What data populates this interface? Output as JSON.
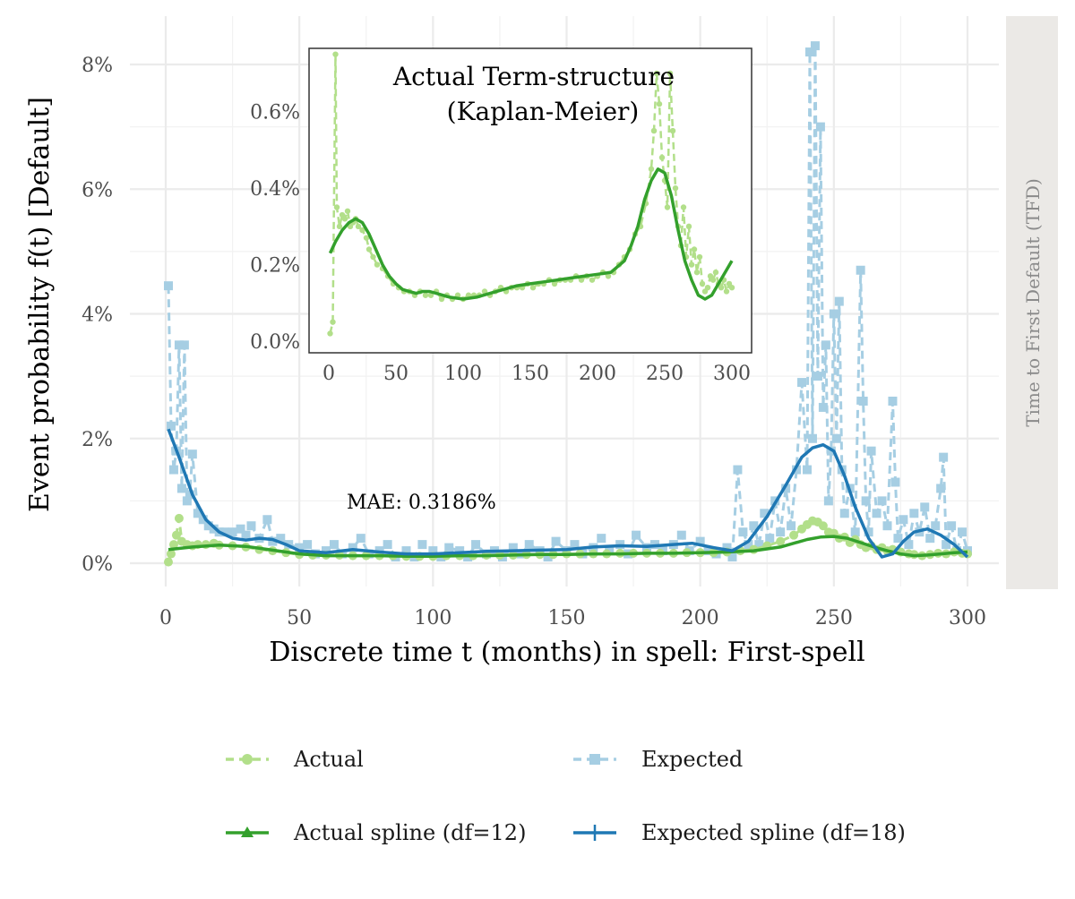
{
  "chart_data": {
    "type": "line",
    "xlabel": "Discrete time t (months) in spell: First-spell",
    "ylabel": "Event probability f(t) [Default]",
    "facet_label": "Time to First Default (TFD)",
    "annotation": "MAE: 0.3186%",
    "xlim": [
      0,
      300
    ],
    "ylim": [
      0,
      8
    ],
    "x_ticks": [
      "0",
      "50",
      "100",
      "150",
      "200",
      "250",
      "300"
    ],
    "y_ticks": [
      "0%",
      "2%",
      "4%",
      "6%",
      "8%"
    ],
    "grid": true,
    "legend_position": "bottom",
    "legend": [
      {
        "label": "Actual",
        "color": "#b2df8a",
        "style": "dashed-circle"
      },
      {
        "label": "Expected",
        "color": "#a6cee3",
        "style": "dashed-square"
      },
      {
        "label": "Actual spline (df=12)",
        "color": "#33a02c",
        "style": "solid-triangle"
      },
      {
        "label": "Expected spline (df=18)",
        "color": "#1f78b4",
        "style": "solid-plus"
      }
    ],
    "series": [
      {
        "name": "Actual",
        "color": "#b2df8a",
        "x": [
          1,
          2,
          3,
          4,
          5,
          6,
          8,
          10,
          12,
          15,
          18,
          20,
          25,
          30,
          35,
          40,
          45,
          50,
          55,
          60,
          65,
          70,
          75,
          80,
          85,
          90,
          95,
          100,
          105,
          110,
          115,
          120,
          125,
          130,
          135,
          140,
          145,
          150,
          155,
          160,
          165,
          170,
          175,
          180,
          185,
          190,
          195,
          200,
          205,
          210,
          215,
          220,
          225,
          230,
          235,
          238,
          240,
          242,
          244,
          246,
          248,
          250,
          252,
          254,
          256,
          258,
          260,
          262,
          264,
          266,
          268,
          270,
          272,
          275,
          278,
          280,
          283,
          286,
          289,
          292,
          295,
          298,
          300
        ],
        "y": [
          0.02,
          0.15,
          0.3,
          0.45,
          0.72,
          0.35,
          0.3,
          0.28,
          0.3,
          0.3,
          0.32,
          0.29,
          0.28,
          0.26,
          0.22,
          0.2,
          0.17,
          0.14,
          0.13,
          0.13,
          0.13,
          0.12,
          0.12,
          0.12,
          0.12,
          0.11,
          0.11,
          0.11,
          0.12,
          0.12,
          0.12,
          0.13,
          0.13,
          0.13,
          0.14,
          0.14,
          0.14,
          0.15,
          0.15,
          0.15,
          0.15,
          0.16,
          0.16,
          0.16,
          0.16,
          0.16,
          0.17,
          0.17,
          0.17,
          0.18,
          0.2,
          0.22,
          0.28,
          0.35,
          0.45,
          0.55,
          0.62,
          0.68,
          0.66,
          0.6,
          0.5,
          0.48,
          0.4,
          0.42,
          0.33,
          0.38,
          0.3,
          0.25,
          0.28,
          0.22,
          0.25,
          0.2,
          0.22,
          0.18,
          0.15,
          0.14,
          0.12,
          0.14,
          0.16,
          0.15,
          0.18,
          0.16,
          0.15
        ]
      },
      {
        "name": "Expected",
        "color": "#a6cee3",
        "x": [
          1,
          2,
          3,
          4,
          5,
          6,
          7,
          8,
          9,
          10,
          12,
          14,
          16,
          18,
          20,
          22,
          25,
          28,
          30,
          32,
          35,
          38,
          40,
          43,
          46,
          50,
          53,
          56,
          60,
          63,
          66,
          70,
          73,
          76,
          80,
          83,
          86,
          90,
          93,
          96,
          100,
          103,
          106,
          110,
          113,
          116,
          120,
          123,
          126,
          130,
          133,
          136,
          140,
          143,
          146,
          150,
          153,
          156,
          160,
          163,
          166,
          170,
          173,
          176,
          180,
          183,
          186,
          190,
          193,
          196,
          200,
          203,
          206,
          210,
          212,
          214,
          216,
          218,
          220,
          222,
          224,
          226,
          228,
          230,
          232,
          234,
          236,
          238,
          240,
          241,
          242,
          243,
          244,
          245,
          246,
          247,
          248,
          249,
          250,
          251,
          252,
          253,
          254,
          256,
          258,
          260,
          261,
          262,
          263,
          264,
          266,
          268,
          270,
          272,
          273,
          274,
          276,
          278,
          280,
          282,
          284,
          286,
          288,
          290,
          291,
          292,
          294,
          296,
          298,
          300
        ],
        "y": [
          4.45,
          2.2,
          1.5,
          1.8,
          3.5,
          1.2,
          3.5,
          1.0,
          1.1,
          1.75,
          0.8,
          0.7,
          0.6,
          0.55,
          0.5,
          0.5,
          0.5,
          0.55,
          0.45,
          0.6,
          0.4,
          0.7,
          0.35,
          0.4,
          0.3,
          0.25,
          0.3,
          0.15,
          0.2,
          0.3,
          0.15,
          0.25,
          0.4,
          0.15,
          0.2,
          0.3,
          0.1,
          0.2,
          0.1,
          0.3,
          0.2,
          0.1,
          0.25,
          0.2,
          0.1,
          0.3,
          0.15,
          0.2,
          0.1,
          0.25,
          0.15,
          0.3,
          0.2,
          0.1,
          0.35,
          0.2,
          0.3,
          0.15,
          0.25,
          0.4,
          0.2,
          0.3,
          0.15,
          0.45,
          0.25,
          0.3,
          0.2,
          0.3,
          0.45,
          0.2,
          0.35,
          0.2,
          0.15,
          0.25,
          0.1,
          1.5,
          0.5,
          0.3,
          0.6,
          0.3,
          0.8,
          0.4,
          1.0,
          0.5,
          1.2,
          0.6,
          1.5,
          2.9,
          1.5,
          8.2,
          2.0,
          8.3,
          3.0,
          7.0,
          2.5,
          3.5,
          1.0,
          1.8,
          4.0,
          2.0,
          4.2,
          1.5,
          0.8,
          1.2,
          0.5,
          4.7,
          2.6,
          1.0,
          0.5,
          1.8,
          0.8,
          1.0,
          0.6,
          2.6,
          1.3,
          0.4,
          0.7,
          0.3,
          0.8,
          0.5,
          0.9,
          0.4,
          0.6,
          1.2,
          1.7,
          0.3,
          0.6,
          0.2,
          0.5,
          0.2
        ]
      },
      {
        "name": "Actual spline (df=12)",
        "color": "#33a02c",
        "x": [
          1,
          10,
          20,
          30,
          40,
          50,
          60,
          70,
          80,
          90,
          100,
          110,
          120,
          130,
          140,
          150,
          160,
          170,
          180,
          190,
          200,
          210,
          220,
          230,
          240,
          245,
          250,
          255,
          260,
          265,
          270,
          275,
          280,
          285,
          290,
          295,
          300
        ],
        "y": [
          0.22,
          0.26,
          0.29,
          0.27,
          0.21,
          0.15,
          0.12,
          0.12,
          0.12,
          0.11,
          0.11,
          0.12,
          0.12,
          0.13,
          0.14,
          0.14,
          0.15,
          0.15,
          0.16,
          0.16,
          0.17,
          0.18,
          0.2,
          0.26,
          0.38,
          0.42,
          0.43,
          0.4,
          0.33,
          0.26,
          0.2,
          0.15,
          0.12,
          0.13,
          0.15,
          0.17,
          0.18
        ]
      },
      {
        "name": "Expected spline (df=18)",
        "color": "#1f78b4",
        "x": [
          1,
          5,
          10,
          15,
          20,
          25,
          30,
          35,
          40,
          45,
          50,
          60,
          70,
          80,
          90,
          100,
          110,
          120,
          130,
          140,
          150,
          160,
          170,
          180,
          190,
          197,
          205,
          212,
          218,
          225,
          232,
          238,
          242,
          246,
          250,
          254,
          258,
          263,
          268,
          272,
          276,
          280,
          285,
          290,
          295,
          300
        ],
        "y": [
          2.15,
          1.7,
          1.1,
          0.7,
          0.5,
          0.4,
          0.37,
          0.4,
          0.38,
          0.3,
          0.2,
          0.17,
          0.22,
          0.18,
          0.15,
          0.15,
          0.17,
          0.19,
          0.2,
          0.21,
          0.22,
          0.26,
          0.28,
          0.27,
          0.3,
          0.32,
          0.25,
          0.2,
          0.35,
          0.75,
          1.25,
          1.7,
          1.85,
          1.9,
          1.8,
          1.4,
          0.9,
          0.4,
          0.1,
          0.15,
          0.35,
          0.5,
          0.55,
          0.45,
          0.3,
          0.1
        ]
      }
    ],
    "inset": {
      "title_line1": "Actual Term-structure",
      "title_line2": "(Kaplan-Meier)",
      "xlim": [
        0,
        300
      ],
      "ylim": [
        0,
        0.7
      ],
      "x_ticks": [
        "0",
        "50",
        "100",
        "150",
        "200",
        "250",
        "300"
      ],
      "y_ticks": [
        "0.0%",
        "0.2%",
        "0.4%",
        "0.6%"
      ],
      "series": [
        {
          "name": "Actual",
          "color": "#b2df8a",
          "x": [
            1,
            3,
            5,
            6,
            8,
            10,
            12,
            14,
            16,
            18,
            20,
            22,
            25,
            28,
            30,
            33,
            36,
            40,
            44,
            48,
            52,
            56,
            60,
            64,
            68,
            72,
            76,
            80,
            84,
            88,
            92,
            96,
            100,
            104,
            108,
            112,
            116,
            120,
            124,
            128,
            132,
            136,
            140,
            144,
            148,
            152,
            156,
            160,
            164,
            168,
            172,
            176,
            180,
            184,
            188,
            192,
            196,
            200,
            204,
            208,
            212,
            216,
            220,
            224,
            228,
            232,
            236,
            240,
            242,
            244,
            246,
            248,
            250,
            252,
            254,
            256,
            258,
            260,
            262,
            264,
            266,
            268,
            270,
            272,
            274,
            276,
            278,
            280,
            282,
            284,
            286,
            288,
            290,
            292,
            294,
            296,
            298,
            300
          ],
          "y": [
            0.02,
            0.05,
            0.75,
            0.35,
            0.3,
            0.33,
            0.32,
            0.34,
            0.3,
            0.31,
            0.32,
            0.3,
            0.29,
            0.27,
            0.24,
            0.22,
            0.2,
            0.19,
            0.17,
            0.15,
            0.14,
            0.13,
            0.13,
            0.12,
            0.13,
            0.12,
            0.12,
            0.13,
            0.11,
            0.12,
            0.11,
            0.12,
            0.11,
            0.12,
            0.12,
            0.12,
            0.13,
            0.12,
            0.13,
            0.14,
            0.13,
            0.14,
            0.14,
            0.14,
            0.15,
            0.14,
            0.15,
            0.15,
            0.16,
            0.15,
            0.16,
            0.16,
            0.16,
            0.17,
            0.16,
            0.17,
            0.16,
            0.17,
            0.18,
            0.17,
            0.18,
            0.2,
            0.22,
            0.24,
            0.28,
            0.3,
            0.36,
            0.45,
            0.55,
            0.7,
            0.62,
            0.48,
            0.42,
            0.35,
            0.7,
            0.55,
            0.4,
            0.3,
            0.25,
            0.35,
            0.22,
            0.3,
            0.2,
            0.24,
            0.18,
            0.22,
            0.15,
            0.13,
            0.14,
            0.17,
            0.16,
            0.18,
            0.15,
            0.14,
            0.16,
            0.13,
            0.15,
            0.14
          ]
        },
        {
          "name": "Actual spline (df=12)",
          "color": "#33a02c",
          "x": [
            1,
            5,
            10,
            15,
            20,
            25,
            30,
            35,
            40,
            45,
            50,
            55,
            60,
            65,
            70,
            75,
            80,
            90,
            100,
            110,
            120,
            130,
            140,
            150,
            160,
            170,
            180,
            190,
            200,
            210,
            220,
            225,
            230,
            235,
            240,
            245,
            250,
            255,
            260,
            265,
            270,
            275,
            280,
            285,
            290,
            295,
            300
          ],
          "y": [
            0.23,
            0.26,
            0.29,
            0.31,
            0.32,
            0.31,
            0.28,
            0.24,
            0.2,
            0.17,
            0.15,
            0.135,
            0.13,
            0.125,
            0.13,
            0.13,
            0.125,
            0.115,
            0.11,
            0.115,
            0.125,
            0.135,
            0.145,
            0.15,
            0.155,
            0.16,
            0.165,
            0.17,
            0.175,
            0.18,
            0.21,
            0.25,
            0.3,
            0.37,
            0.42,
            0.45,
            0.44,
            0.38,
            0.29,
            0.21,
            0.16,
            0.12,
            0.11,
            0.12,
            0.15,
            0.18,
            0.21
          ]
        }
      ]
    }
  }
}
